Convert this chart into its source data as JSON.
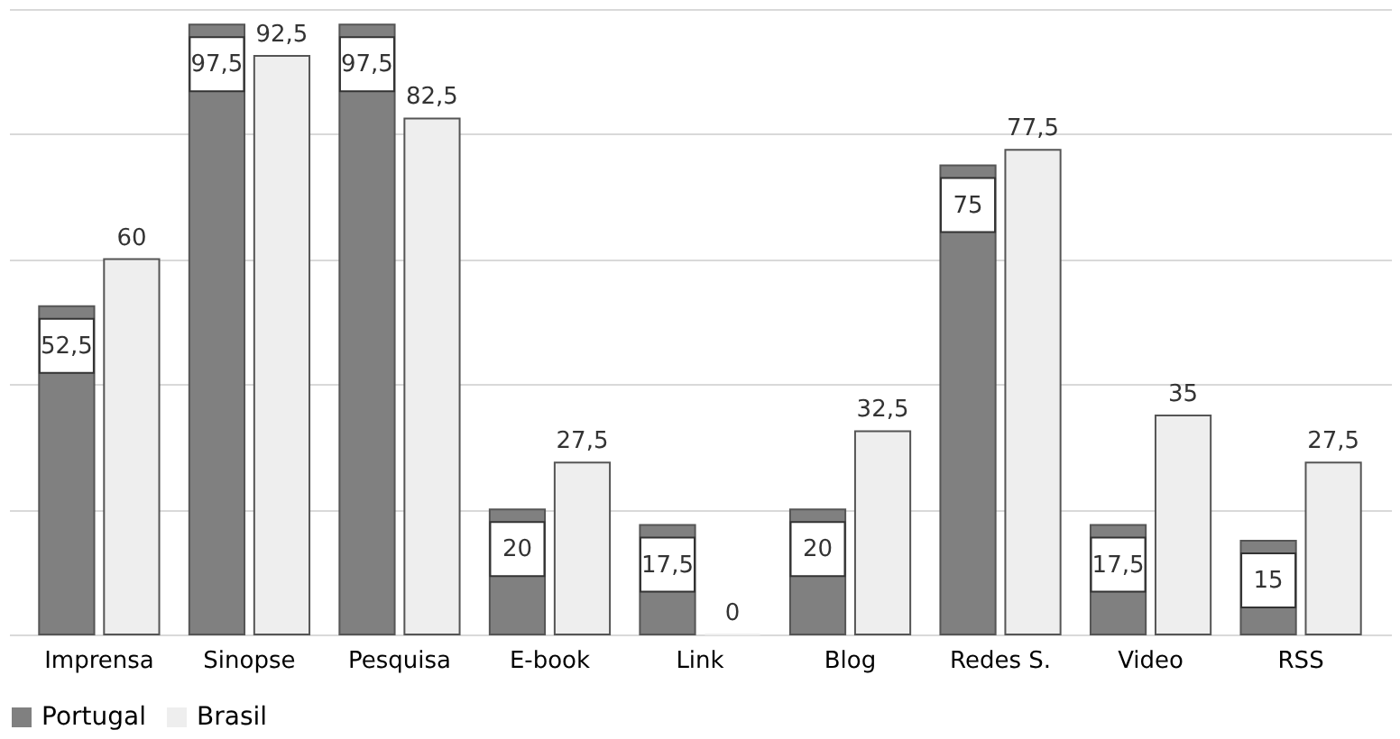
{
  "chart_data": {
    "type": "bar",
    "categories": [
      "Imprensa",
      "Sinopse",
      "Pesquisa",
      "E-book",
      "Link",
      "Blog",
      "Redes S.",
      "Video",
      "RSS"
    ],
    "series": [
      {
        "name": "Portugal",
        "color": "#808080",
        "values": [
          52.5,
          97.5,
          97.5,
          20,
          17.5,
          20,
          75,
          17.5,
          15
        ],
        "value_labels": [
          "52,5",
          "97,5",
          "97,5",
          "20",
          "17,5",
          "20",
          "75",
          "17,5",
          "15"
        ]
      },
      {
        "name": "Brasil",
        "color": "#eeeeee",
        "values": [
          60,
          92.5,
          82.5,
          27.5,
          0,
          32.5,
          77.5,
          35,
          27.5
        ],
        "value_labels": [
          "60",
          "92,5",
          "82,5",
          "27,5",
          "0",
          "32,5",
          "77,5",
          "35",
          "27,5"
        ]
      }
    ],
    "ylim": [
      0,
      100
    ],
    "yticks": [
      {
        "value": 0,
        "label": null
      },
      {
        "value": 20,
        "label": null
      },
      {
        "value": 40,
        "label": null
      },
      {
        "value": 60,
        "label": null
      },
      {
        "value": 80,
        "label": null
      },
      {
        "value": 100,
        "label": null
      }
    ],
    "grid": "y",
    "tick_labels": "x",
    "legend": "bottom"
  }
}
